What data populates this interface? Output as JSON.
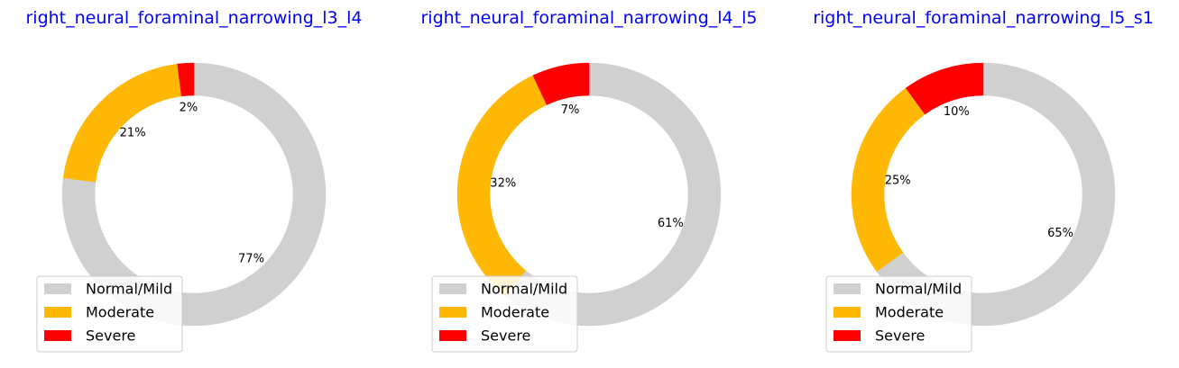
{
  "chart_data": [
    {
      "type": "pie",
      "style": "donut",
      "title": "right_neural_foraminal_narrowing_l3_l4",
      "categories": [
        "Normal/Mild",
        "Moderate",
        "Severe"
      ],
      "values": [
        77,
        21,
        2
      ],
      "labels": [
        "77%",
        "21%",
        "2%"
      ],
      "legend": "lower-left"
    },
    {
      "type": "pie",
      "style": "donut",
      "title": "right_neural_foraminal_narrowing_l4_l5",
      "categories": [
        "Normal/Mild",
        "Moderate",
        "Severe"
      ],
      "values": [
        61,
        32,
        7
      ],
      "labels": [
        "61%",
        "32%",
        "7%"
      ],
      "legend": "lower-left"
    },
    {
      "type": "pie",
      "style": "donut",
      "title": "right_neural_foraminal_narrowing_l5_s1",
      "categories": [
        "Normal/Mild",
        "Moderate",
        "Severe"
      ],
      "values": [
        65,
        25,
        10
      ],
      "labels": [
        "65%",
        "25%",
        "10%"
      ],
      "legend": "lower-left"
    }
  ],
  "colors": {
    "title": "#0000ff",
    "Normal/Mild": "#d0d0d0",
    "Moderate": "#ffb805",
    "Severe": "#ff0000"
  }
}
